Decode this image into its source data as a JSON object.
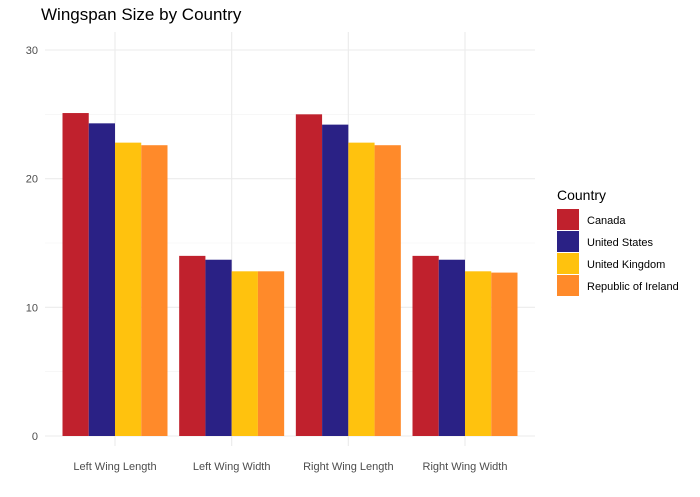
{
  "chart_data": {
    "type": "bar",
    "title": "Wingspan Size by Country",
    "xlabel": "",
    "ylabel": "",
    "categories": [
      "Left Wing Length",
      "Left Wing Width",
      "Right Wing Length",
      "Right Wing Width"
    ],
    "series": [
      {
        "name": "Canada",
        "color": "#C0212D",
        "values": [
          25.1,
          14.0,
          25.0,
          14.0
        ]
      },
      {
        "name": "United States",
        "color": "#2A2185",
        "values": [
          24.3,
          13.7,
          24.2,
          13.7
        ]
      },
      {
        "name": "United Kingdom",
        "color": "#FFC20E",
        "values": [
          22.8,
          12.8,
          22.8,
          12.8
        ]
      },
      {
        "name": "Republic of Ireland",
        "color": "#FF8A2A",
        "values": [
          22.6,
          12.8,
          22.6,
          12.7
        ]
      }
    ],
    "ylim": [
      0,
      30
    ],
    "yticks": [
      0,
      10,
      20,
      30
    ],
    "grid": true,
    "legend": {
      "title": "Country",
      "position": "right"
    }
  }
}
